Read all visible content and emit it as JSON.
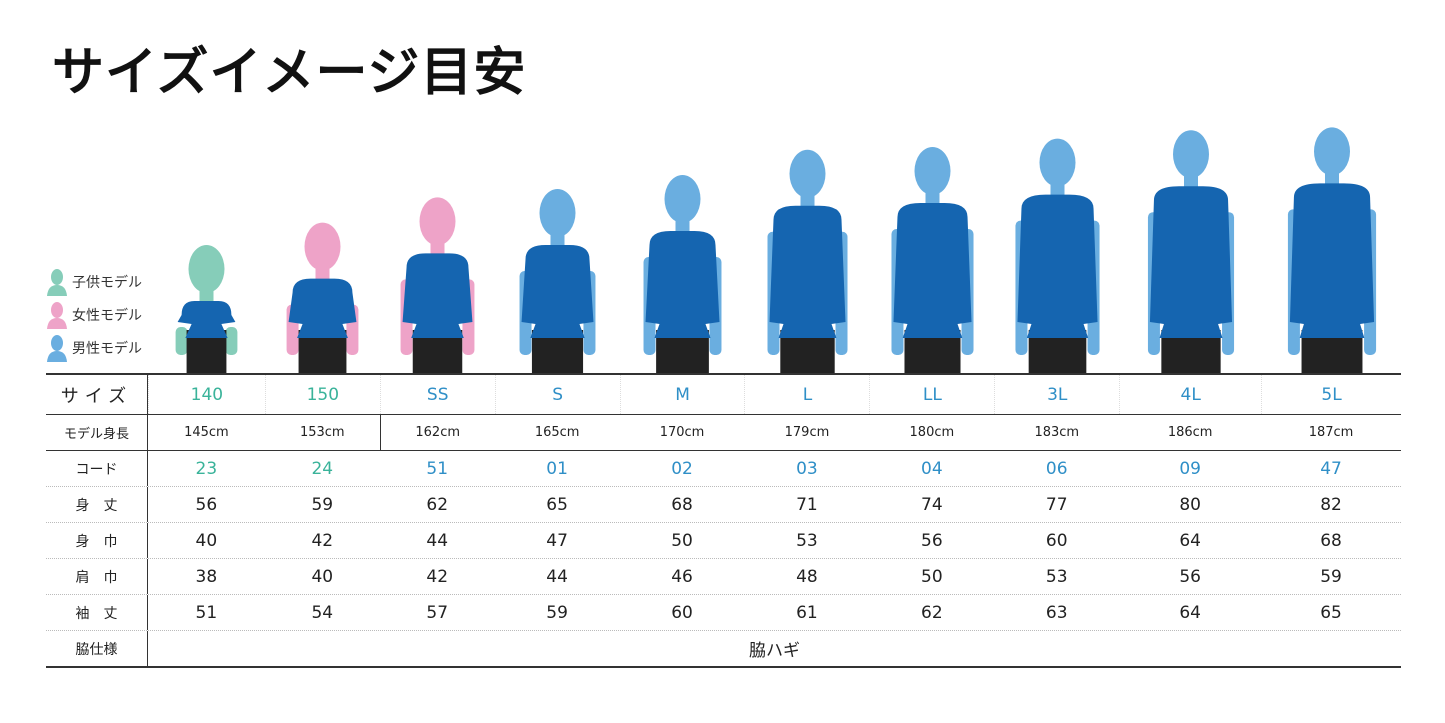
{
  "title": "サイズイメージ目安",
  "colors": {
    "child": "#86cdb9",
    "female": "#eea3c8",
    "male": "#6aaee0",
    "shirt": "#1565b0",
    "shorts": "#222222",
    "size_teal": "#3ab39a",
    "size_blue": "#2f8fc7"
  },
  "legend": [
    {
      "label": "子供モデル",
      "type": "child"
    },
    {
      "label": "女性モデル",
      "type": "female"
    },
    {
      "label": "男性モデル",
      "type": "male"
    }
  ],
  "models": [
    "child",
    "female",
    "female",
    "male",
    "male",
    "male",
    "male",
    "male",
    "male",
    "male"
  ],
  "table": {
    "rows": [
      {
        "label": "サイズ",
        "values": [
          "140",
          "150",
          "SS",
          "S",
          "M",
          "L",
          "LL",
          "3L",
          "4L",
          "5L"
        ]
      },
      {
        "label": "モデル身長",
        "values": [
          "145cm",
          "153cm",
          "162cm",
          "165cm",
          "170cm",
          "179cm",
          "180cm",
          "183cm",
          "186cm",
          "187cm"
        ]
      },
      {
        "label": "コード",
        "values": [
          "23",
          "24",
          "51",
          "01",
          "02",
          "03",
          "04",
          "06",
          "09",
          "47"
        ]
      },
      {
        "label": "身　丈",
        "values": [
          "56",
          "59",
          "62",
          "65",
          "68",
          "71",
          "74",
          "77",
          "80",
          "82"
        ]
      },
      {
        "label": "身　巾",
        "values": [
          "40",
          "42",
          "44",
          "47",
          "50",
          "53",
          "56",
          "60",
          "64",
          "68"
        ]
      },
      {
        "label": "肩　巾",
        "values": [
          "38",
          "40",
          "42",
          "44",
          "46",
          "48",
          "50",
          "53",
          "56",
          "59"
        ]
      },
      {
        "label": "袖　丈",
        "values": [
          "51",
          "54",
          "57",
          "59",
          "60",
          "61",
          "62",
          "63",
          "64",
          "65"
        ]
      }
    ],
    "side": {
      "label": "脇仕様",
      "value": "脇ハギ"
    }
  }
}
